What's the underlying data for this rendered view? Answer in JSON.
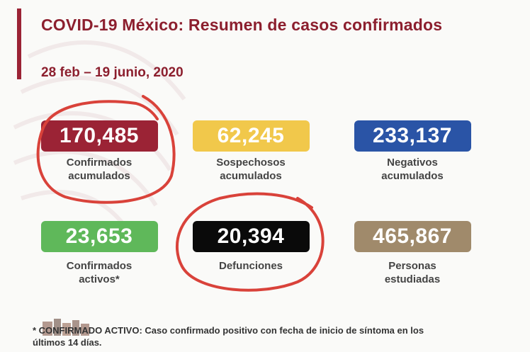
{
  "header": {
    "title": "COVID-19 México: Resumen de casos confirmados",
    "date_range": "28 feb – 19 junio, 2020"
  },
  "cards": [
    {
      "value": "170,485",
      "label_line1": "Confirmados",
      "label_line2": "acumulados",
      "color": "#9b2335"
    },
    {
      "value": "62,245",
      "label_line1": "Sospechosos",
      "label_line2": "acumulados",
      "color": "#f1c84b"
    },
    {
      "value": "233,137",
      "label_line1": "Negativos",
      "label_line2": "acumulados",
      "color": "#2a54a6"
    },
    {
      "value": "23,653",
      "label_line1": "Confirmados",
      "label_line2": "activos*",
      "color": "#5fb85a"
    },
    {
      "value": "20,394",
      "label_line1": "Defunciones",
      "label_line2": "",
      "color": "#0a0a0a"
    },
    {
      "value": "465,867",
      "label_line1": "Personas",
      "label_line2": "estudiadas",
      "color": "#a08a6b"
    }
  ],
  "footnote": {
    "line1": "* CONFIRMADO ACTIVO: Caso confirmado positivo con fecha de inicio de síntoma en los",
    "line2": "últimos 14 días."
  },
  "annotation_color": "#d9423a"
}
